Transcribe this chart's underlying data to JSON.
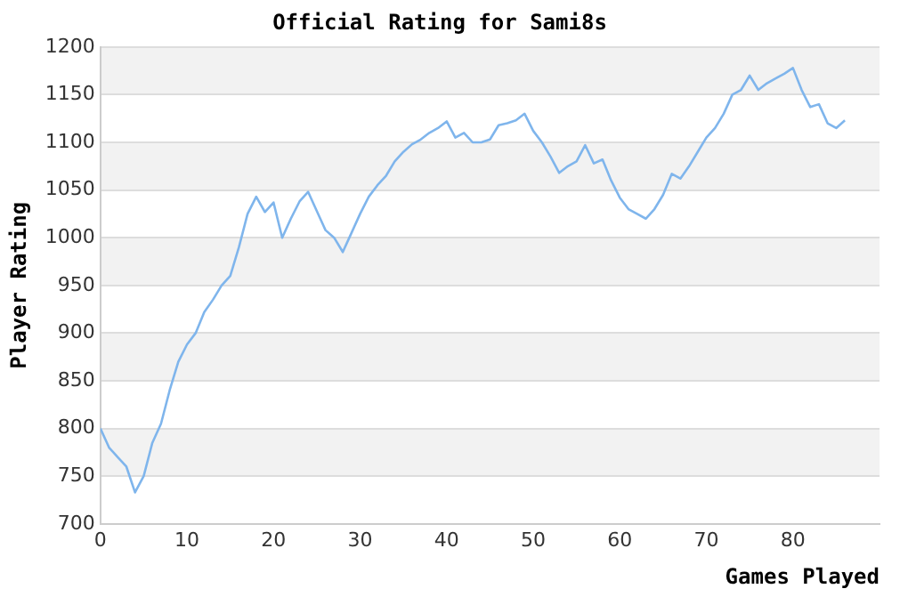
{
  "chart_data": {
    "type": "line",
    "title": "Official Rating for Sami8s",
    "xlabel": "Games Played",
    "ylabel": "Player Rating",
    "x": [
      0,
      1,
      2,
      3,
      4,
      5,
      6,
      7,
      8,
      9,
      10,
      11,
      12,
      13,
      14,
      15,
      16,
      17,
      18,
      19,
      20,
      21,
      22,
      23,
      24,
      25,
      26,
      27,
      28,
      29,
      30,
      31,
      32,
      33,
      34,
      35,
      36,
      37,
      38,
      39,
      40,
      41,
      42,
      43,
      44,
      45,
      46,
      47,
      48,
      49,
      50,
      51,
      52,
      53,
      54,
      55,
      56,
      57,
      58,
      59,
      60,
      61,
      62,
      63,
      64,
      65,
      66,
      67,
      68,
      69,
      70,
      71,
      72,
      73,
      74,
      75,
      76,
      77,
      78,
      79,
      80,
      81,
      82,
      83,
      84,
      85,
      86
    ],
    "series": [
      {
        "color": "#7fb5ec",
        "values": [
          800,
          780,
          770,
          760,
          733,
          750,
          785,
          805,
          840,
          870,
          888,
          900,
          922,
          935,
          950,
          960,
          990,
          1025,
          1043,
          1027,
          1037,
          1000,
          1020,
          1038,
          1048,
          1028,
          1008,
          1000,
          985,
          1005,
          1025,
          1043,
          1055,
          1065,
          1080,
          1090,
          1098,
          1103,
          1110,
          1115,
          1122,
          1105,
          1110,
          1100,
          1100,
          1103,
          1118,
          1120,
          1123,
          1130,
          1112,
          1100,
          1085,
          1068,
          1075,
          1080,
          1097,
          1078,
          1082,
          1060,
          1042,
          1030,
          1025,
          1020,
          1030,
          1045,
          1067,
          1062,
          1075,
          1090,
          1105,
          1115,
          1130,
          1150,
          1155,
          1170,
          1155,
          1162,
          1167,
          1172,
          1178,
          1155,
          1137,
          1140,
          1120,
          1115,
          1123
        ]
      }
    ],
    "xlim": [
      0,
      90
    ],
    "xticks": [
      0,
      10,
      20,
      30,
      40,
      50,
      60,
      70,
      80
    ],
    "ylim": [
      700,
      1200
    ],
    "yticks": [
      700,
      750,
      800,
      850,
      900,
      950,
      1000,
      1050,
      1100,
      1150,
      1200
    ],
    "grid": "y",
    "legend": false,
    "marker": "none",
    "line_style": "solid"
  }
}
